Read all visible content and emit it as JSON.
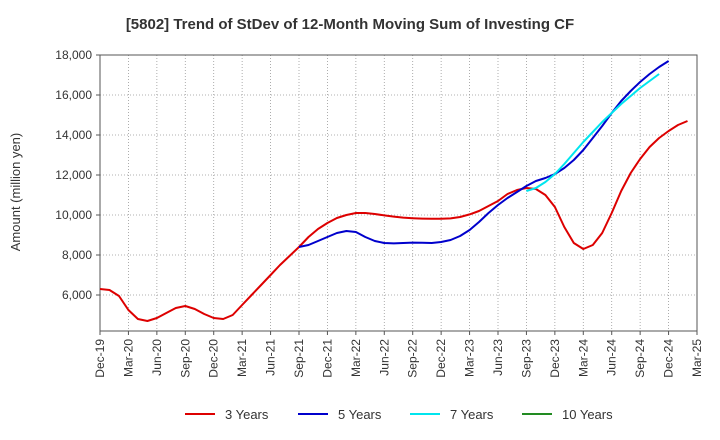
{
  "chart_data": {
    "type": "line",
    "title": "[5802]  Trend of StDev of 12-Month Moving Sum of Investing CF",
    "xlabel": "",
    "ylabel": "Amount (million yen)",
    "ylim": [
      4200,
      18000
    ],
    "yticks": [
      6000,
      8000,
      10000,
      12000,
      14000,
      16000,
      18000
    ],
    "ytick_labels": [
      "6,000",
      "8,000",
      "10,000",
      "12,000",
      "14,000",
      "16,000",
      "18,000"
    ],
    "x_start": "2019-12",
    "x_end": "2025-03",
    "xtick_labels": [
      "Dec-19",
      "Mar-20",
      "Jun-20",
      "Sep-20",
      "Dec-20",
      "Mar-21",
      "Jun-21",
      "Sep-21",
      "Dec-21",
      "Mar-22",
      "Jun-22",
      "Sep-22",
      "Dec-22",
      "Mar-23",
      "Jun-23",
      "Sep-23",
      "Dec-23",
      "Mar-24",
      "Jun-24",
      "Sep-24",
      "Dec-24",
      "Mar-25"
    ],
    "grid": true,
    "legend_position": "bottom",
    "series": [
      {
        "name": "3 Years",
        "color": "#dd0000",
        "start": "2019-12",
        "values": [
          6300,
          6250,
          5950,
          5250,
          4800,
          4700,
          4850,
          5100,
          5350,
          5450,
          5300,
          5050,
          4850,
          4800,
          5000,
          5500,
          6000,
          6500,
          7000,
          7500,
          7950,
          8400,
          8900,
          9300,
          9600,
          9850,
          10000,
          10100,
          10100,
          10050,
          9980,
          9920,
          9870,
          9840,
          9820,
          9810,
          9810,
          9830,
          9900,
          10030,
          10200,
          10450,
          10700,
          11050,
          11250,
          11350,
          11300,
          11000,
          10400,
          9400,
          8600,
          8300,
          8500,
          9100,
          10100,
          11200,
          12100,
          12800,
          13400,
          13850,
          14200,
          14500,
          14700
        ]
      },
      {
        "name": "5 Years",
        "color": "#0000cc",
        "start": "2021-09",
        "values": [
          8400,
          8500,
          8700,
          8900,
          9100,
          9200,
          9150,
          8900,
          8700,
          8600,
          8580,
          8600,
          8620,
          8610,
          8600,
          8650,
          8750,
          8950,
          9250,
          9650,
          10100,
          10500,
          10850,
          11150,
          11450,
          11700,
          11850,
          12050,
          12350,
          12750,
          13250,
          13850,
          14450,
          15100,
          15700,
          16200,
          16650,
          17050,
          17400,
          17700
        ]
      },
      {
        "name": "7 Years",
        "color": "#00e5ee",
        "start": "2023-09",
        "values": [
          11200,
          11350,
          11650,
          12050,
          12550,
          13100,
          13650,
          14150,
          14650,
          15100,
          15550,
          15950,
          16350,
          16700,
          17050
        ]
      },
      {
        "name": "10 Years",
        "color": "#228b22",
        "start": "2023-09",
        "values": []
      }
    ]
  }
}
